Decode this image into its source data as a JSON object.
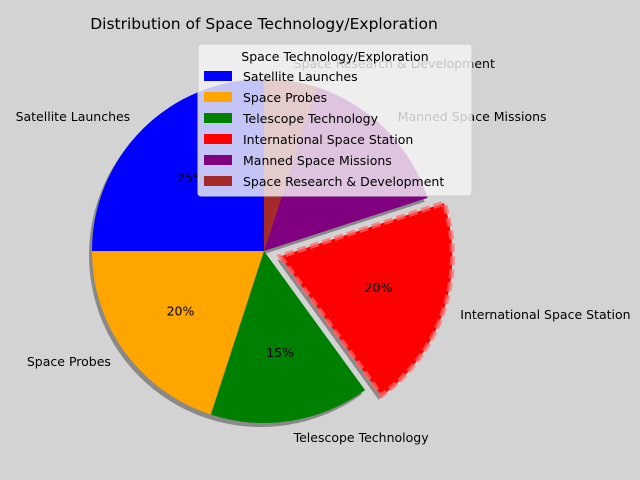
{
  "chart_data": {
    "type": "pie",
    "title": "Distribution of Space Technology/Exploration",
    "legend_title": "Space Technology/Exploration",
    "legend_position": "upper-right",
    "start_angle": 90,
    "direction": "counterclockwise",
    "shadow": true,
    "labels": [
      "Satellite Launches",
      "Space Probes",
      "Telescope Technology",
      "International Space Station",
      "Manned Space Missions",
      "Space Research & Development"
    ],
    "values": [
      25,
      20,
      15,
      20,
      15,
      5
    ],
    "percent_labels": [
      "25%",
      "20%",
      "15%",
      "20%",
      "",
      ""
    ],
    "colors": [
      "#0000ff",
      "#ffa500",
      "#008000",
      "#ff0000",
      "#800080",
      "#a52a2a"
    ],
    "explode": [
      0,
      0,
      0,
      0.1,
      0,
      0
    ]
  }
}
